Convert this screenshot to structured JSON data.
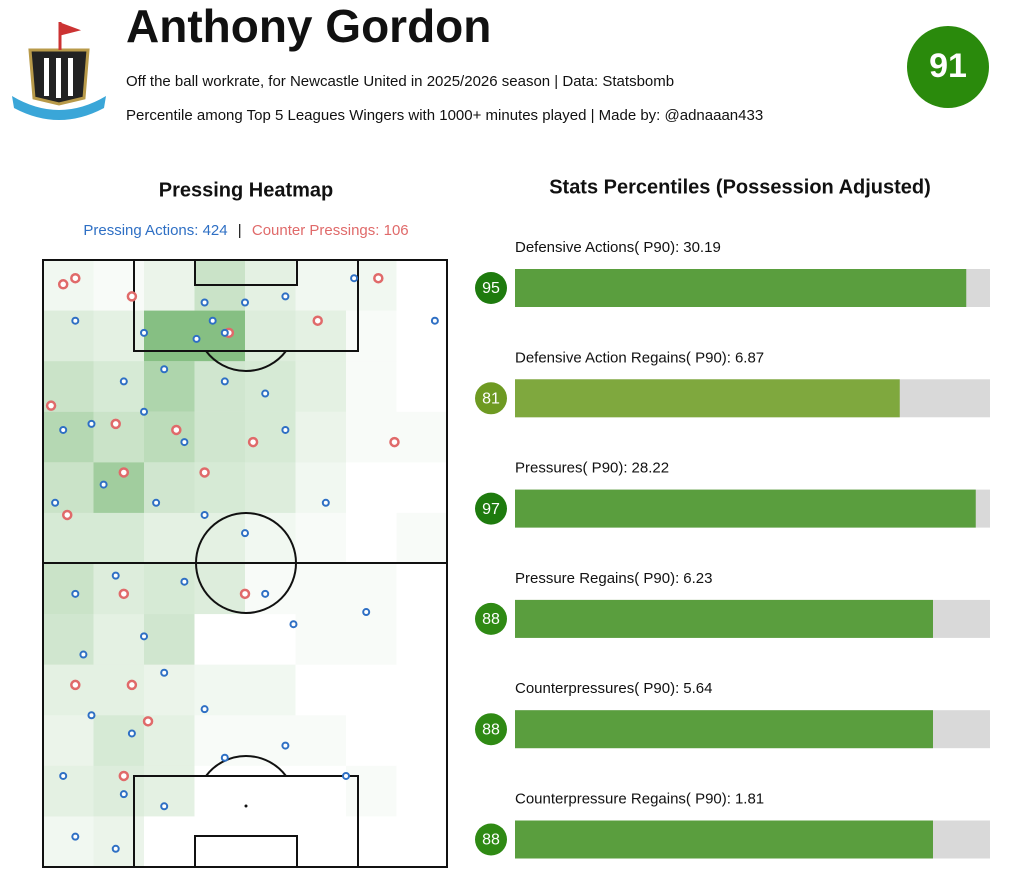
{
  "header": {
    "title": "Anthony Gordon",
    "subtitle": "Off the ball workrate, for Newcastle United in 2025/2026 season | Data: Statsbomb",
    "note": "Percentile among Top 5 Leagues Wingers with 1000+ minutes played | Made by: @adnaaan433",
    "overall": 91,
    "overall_color": "#2a8a0c"
  },
  "heatmap": {
    "type": "heatmap",
    "title": "Pressing Heatmap",
    "legend": {
      "pressing_label": "Pressing Actions:",
      "pressing_count": 424,
      "separator": "|",
      "counter_label": "Counter Pressings:",
      "counter_count": 106
    },
    "pressing_color": "#2e6fc4",
    "counter_color": "#e06a6a",
    "cell_color": "#3f9a3a",
    "cells": [
      [
        0.1,
        0.05,
        0.15,
        0.4,
        0.2,
        0.1,
        0.1,
        0
      ],
      [
        0.25,
        0.2,
        0.9,
        0.9,
        0.25,
        0.2,
        0.05,
        0
      ],
      [
        0.4,
        0.3,
        0.6,
        0.35,
        0.3,
        0.2,
        0.05,
        0
      ],
      [
        0.55,
        0.4,
        0.5,
        0.35,
        0.3,
        0.15,
        0.05,
        0.05
      ],
      [
        0.4,
        0.7,
        0.35,
        0.3,
        0.25,
        0.1,
        0,
        0
      ],
      [
        0.3,
        0.3,
        0.2,
        0.2,
        0.1,
        0.05,
        0,
        0.05
      ],
      [
        0.4,
        0.25,
        0.3,
        0.25,
        0.05,
        0.05,
        0.05,
        0
      ],
      [
        0.35,
        0.2,
        0.35,
        0,
        0,
        0.05,
        0.05,
        0
      ],
      [
        0.2,
        0.2,
        0.15,
        0.1,
        0.1,
        0,
        0,
        0
      ],
      [
        0.15,
        0.3,
        0.2,
        0.05,
        0.05,
        0.05,
        0,
        0
      ],
      [
        0.2,
        0.25,
        0.2,
        0,
        0,
        0,
        0.05,
        0
      ],
      [
        0.1,
        0.15,
        0,
        0,
        0,
        0,
        0,
        0
      ]
    ],
    "pressing_points": [
      [
        8,
        10
      ],
      [
        25,
        12
      ],
      [
        40,
        7
      ],
      [
        42,
        10
      ],
      [
        45,
        12
      ],
      [
        38,
        13
      ],
      [
        50,
        7
      ],
      [
        60,
        6
      ],
      [
        77,
        3
      ],
      [
        97,
        10
      ],
      [
        20,
        20
      ],
      [
        30,
        18
      ],
      [
        45,
        20
      ],
      [
        55,
        22
      ],
      [
        5,
        28
      ],
      [
        12,
        27
      ],
      [
        25,
        25
      ],
      [
        35,
        30
      ],
      [
        60,
        28
      ],
      [
        3,
        40
      ],
      [
        15,
        37
      ],
      [
        28,
        40
      ],
      [
        40,
        42
      ],
      [
        50,
        45
      ],
      [
        70,
        40
      ],
      [
        8,
        55
      ],
      [
        18,
        52
      ],
      [
        35,
        53
      ],
      [
        55,
        55
      ],
      [
        10,
        65
      ],
      [
        25,
        62
      ],
      [
        30,
        68
      ],
      [
        62,
        60
      ],
      [
        80,
        58
      ],
      [
        12,
        75
      ],
      [
        22,
        78
      ],
      [
        40,
        74
      ],
      [
        60,
        80
      ],
      [
        5,
        85
      ],
      [
        20,
        88
      ],
      [
        30,
        90
      ],
      [
        45,
        82
      ],
      [
        75,
        85
      ],
      [
        8,
        95
      ],
      [
        18,
        97
      ]
    ],
    "counter_points": [
      [
        5,
        4
      ],
      [
        8,
        3
      ],
      [
        22,
        6
      ],
      [
        46,
        12
      ],
      [
        68,
        10
      ],
      [
        83,
        3
      ],
      [
        2,
        24
      ],
      [
        18,
        27
      ],
      [
        33,
        28
      ],
      [
        52,
        30
      ],
      [
        6,
        42
      ],
      [
        20,
        35
      ],
      [
        40,
        35
      ],
      [
        87,
        30
      ],
      [
        20,
        55
      ],
      [
        50,
        55
      ],
      [
        8,
        70
      ],
      [
        22,
        70
      ],
      [
        26,
        76
      ],
      [
        20,
        85
      ]
    ]
  },
  "stats": {
    "type": "bar",
    "title": "Stats Percentiles (Possession Adjusted)",
    "xlim": [
      0,
      100
    ],
    "track_color": "#d9d9d9",
    "items": [
      {
        "label": "Defensive Actions( P90):",
        "value": 30.19,
        "percentile": 95,
        "circle_color": "#1e7b0e",
        "color": "#5a9e3e"
      },
      {
        "label": "Defensive Action Regains( P90):",
        "value": 6.87,
        "percentile": 81,
        "circle_color": "#6e9a22",
        "color": "#7fa83e"
      },
      {
        "label": "Pressures( P90):",
        "value": 28.22,
        "percentile": 97,
        "circle_color": "#1e7b0e",
        "color": "#5a9e3e"
      },
      {
        "label": "Pressure Regains( P90):",
        "value": 6.23,
        "percentile": 88,
        "circle_color": "#2f8a14",
        "color": "#5a9e3e"
      },
      {
        "label": "Counterpressures( P90):",
        "value": 5.64,
        "percentile": 88,
        "circle_color": "#2f8a14",
        "color": "#5a9e3e"
      },
      {
        "label": "Counterpressure Regains( P90):",
        "value": 1.81,
        "percentile": 88,
        "circle_color": "#2f8a14",
        "color": "#5a9e3e"
      }
    ]
  }
}
